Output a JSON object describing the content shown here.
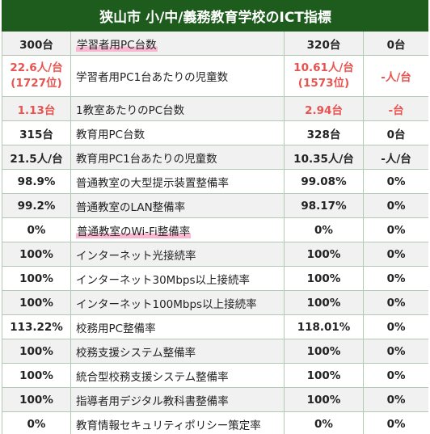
{
  "title": "狭山市 小/中/義務教育学校のICT指標",
  "rows": [
    {
      "a": "300台",
      "label": "学習者用PC台数",
      "b": "320台",
      "c": "0台",
      "alt": true,
      "hl": true
    },
    {
      "a": "22.6人/台",
      "a2": "(1727位)",
      "label": "学習者用PC1台あたりの児童数",
      "b": "10.61人/台",
      "b2": "(1573位)",
      "c": "-人/台",
      "red": true
    },
    {
      "a": "1.13台",
      "label": "1教室あたりのPC台数",
      "b": "2.94台",
      "c": "-台",
      "red": true,
      "alt": true
    },
    {
      "a": "315台",
      "label": "教育用PC台数",
      "b": "328台",
      "c": "0台"
    },
    {
      "a": "21.5人/台",
      "label": "教育用PC1台あたりの児童数",
      "b": "10.35人/台",
      "c": "-人/台",
      "alt": true
    },
    {
      "a": "98.9%",
      "label": "普通教室の大型提示装置整備率",
      "b": "99.08%",
      "c": "0%"
    },
    {
      "a": "99.2%",
      "label": "普通教室のLAN整備率",
      "b": "98.17%",
      "c": "0%",
      "alt": true
    },
    {
      "a": "0%",
      "label": "普通教室のWi-Fi整備率",
      "b": "0%",
      "c": "0%",
      "hl": true
    },
    {
      "a": "100%",
      "label": "インターネット光接続率",
      "b": "100%",
      "c": "0%",
      "alt": true
    },
    {
      "a": "100%",
      "label": "インターネット30Mbps以上接続率",
      "b": "100%",
      "c": "0%"
    },
    {
      "a": "100%",
      "label": "インターネット100Mbps以上接続率",
      "b": "100%",
      "c": "0%",
      "alt": true
    },
    {
      "a": "113.22%",
      "label": "校務用PC整備率",
      "b": "118.01%",
      "c": "0%"
    },
    {
      "a": "100%",
      "label": "校務支援システム整備率",
      "b": "100%",
      "c": "0%",
      "alt": true
    },
    {
      "a": "100%",
      "label": "統合型校務支援システム整備率",
      "b": "100%",
      "c": "0%"
    },
    {
      "a": "100%",
      "label": "指導者用デジタル教科書整備率",
      "b": "100%",
      "c": "0%",
      "alt": true
    },
    {
      "a": "0%",
      "label": "教育情報セキュリティポリシー策定率",
      "b": "0%",
      "c": "0%"
    }
  ]
}
